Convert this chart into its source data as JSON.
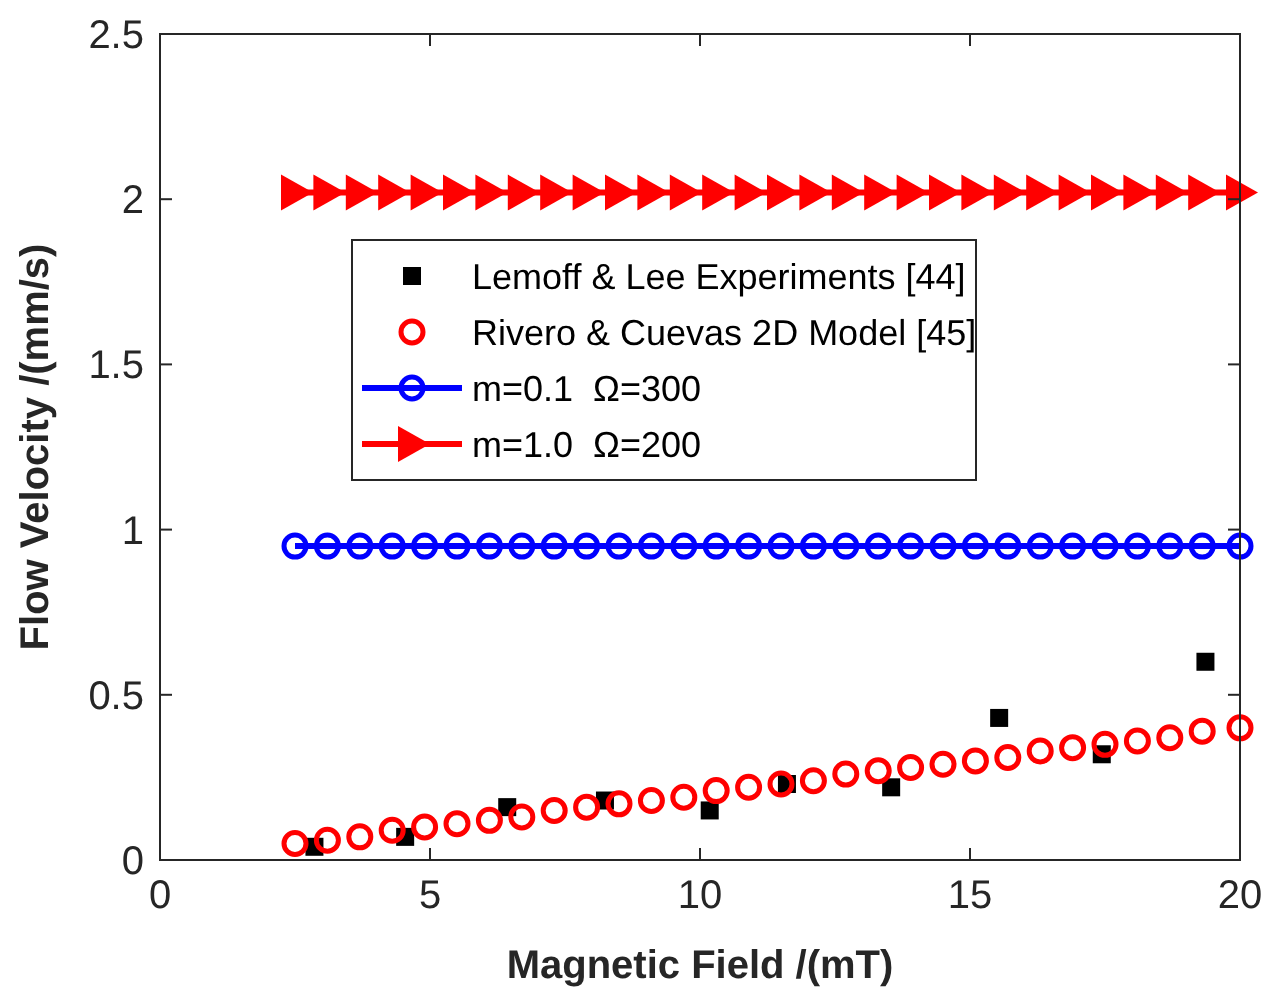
{
  "chart_data": {
    "type": "scatter",
    "xlabel": "Magnetic Field /(mT)",
    "ylabel": "Flow Velocity /(mm/s)",
    "xlim": [
      0,
      20
    ],
    "xticks": [
      0,
      5,
      10,
      15,
      20
    ],
    "ylim": [
      0,
      2.5
    ],
    "yticks": [
      0,
      0.5,
      1,
      1.5,
      2,
      2.5
    ],
    "grid": false,
    "legend": "top",
    "series": [
      {
        "name": "Lemoff & Lee Experiments [44]",
        "marker": "square",
        "color": "#000000",
        "x": [
          2.86,
          4.54,
          6.43,
          8.24,
          10.18,
          11.61,
          13.54,
          15.54,
          17.44,
          19.36
        ],
        "values": [
          0.04,
          0.07,
          0.16,
          0.18,
          0.15,
          0.23,
          0.22,
          0.43,
          0.32,
          0.6
        ]
      },
      {
        "name": "Rivero & Cuevas 2D Model [45]",
        "marker": "circle",
        "color": "#ff0000",
        "x": [
          2.5,
          3.1,
          3.7,
          4.3,
          4.9,
          5.5,
          6.1,
          6.7,
          7.3,
          7.9,
          8.5,
          9.1,
          9.7,
          10.3,
          10.9,
          11.5,
          12.1,
          12.7,
          13.3,
          13.9,
          14.5,
          15.1,
          15.7,
          16.3,
          16.9,
          17.5,
          18.1,
          18.7,
          19.3,
          20
        ],
        "values": [
          0.05,
          0.06,
          0.07,
          0.09,
          0.1,
          0.11,
          0.12,
          0.13,
          0.15,
          0.16,
          0.17,
          0.18,
          0.19,
          0.21,
          0.22,
          0.23,
          0.24,
          0.26,
          0.27,
          0.28,
          0.29,
          0.3,
          0.31,
          0.33,
          0.34,
          0.35,
          0.36,
          0.37,
          0.39,
          0.4
        ]
      },
      {
        "name": "m=0.1  Ω=300",
        "type": "line",
        "marker": "circle",
        "color": "#0000ff",
        "x": [
          2.5,
          3.1,
          3.7,
          4.3,
          4.9,
          5.5,
          6.1,
          6.7,
          7.3,
          7.9,
          8.5,
          9.1,
          9.7,
          10.3,
          10.9,
          11.5,
          12.1,
          12.7,
          13.3,
          13.9,
          14.5,
          15.1,
          15.7,
          16.3,
          16.9,
          17.5,
          18.1,
          18.7,
          19.3,
          20
        ],
        "values": [
          0.95,
          0.95,
          0.95,
          0.95,
          0.95,
          0.95,
          0.95,
          0.95,
          0.95,
          0.95,
          0.95,
          0.95,
          0.95,
          0.95,
          0.95,
          0.95,
          0.95,
          0.95,
          0.95,
          0.95,
          0.95,
          0.95,
          0.95,
          0.95,
          0.95,
          0.95,
          0.95,
          0.95,
          0.95,
          0.95
        ]
      },
      {
        "name": "m=1.0  Ω=200",
        "type": "line",
        "marker": "triangle",
        "color": "#ff0000",
        "x": [
          2.5,
          3.1,
          3.7,
          4.3,
          4.9,
          5.5,
          6.1,
          6.7,
          7.3,
          7.9,
          8.5,
          9.1,
          9.7,
          10.3,
          10.9,
          11.5,
          12.1,
          12.7,
          13.3,
          13.9,
          14.5,
          15.1,
          15.7,
          16.3,
          16.9,
          17.5,
          18.1,
          18.7,
          19.3,
          20
        ],
        "values": [
          2.02,
          2.02,
          2.02,
          2.02,
          2.02,
          2.02,
          2.02,
          2.02,
          2.02,
          2.02,
          2.02,
          2.02,
          2.02,
          2.02,
          2.02,
          2.02,
          2.02,
          2.02,
          2.02,
          2.02,
          2.02,
          2.02,
          2.02,
          2.02,
          2.02,
          2.02,
          2.02,
          2.02,
          2.02,
          2.02
        ]
      }
    ]
  }
}
